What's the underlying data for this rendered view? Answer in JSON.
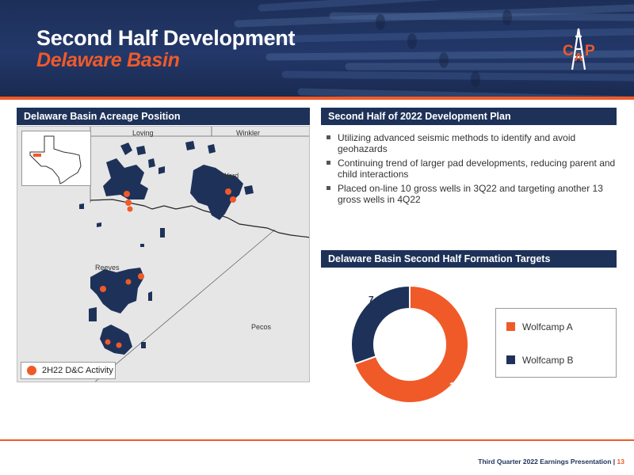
{
  "header": {
    "title": "Second Half Development",
    "subtitle": "Delaware Basin",
    "logo_letters": [
      "C",
      "A",
      "P"
    ]
  },
  "map_panel": {
    "heading": "Delaware Basin Acreage Position",
    "counties": [
      "Loving",
      "Winkler",
      "Ward",
      "Reeves",
      "Pecos"
    ],
    "legend_label": "2H22 D&C Activity"
  },
  "plan_panel": {
    "heading": "Second Half of 2022 Development Plan",
    "bullets": [
      "Utilizing advanced seismic methods to identify and avoid geohazards",
      "Continuing trend of larger pad developments, reducing parent and child interactions",
      "Placed on-line 10 gross wells in 3Q22 and targeting another 13 gross wells in 4Q22"
    ]
  },
  "targets_panel": {
    "heading": "Delaware Basin Second Half Formation Targets"
  },
  "chart_data": {
    "type": "pie",
    "donut": true,
    "categories": [
      "Wolfcamp A",
      "Wolfcamp B"
    ],
    "values": [
      16,
      7
    ],
    "colors": [
      "#f05a28",
      "#1e3259"
    ],
    "data_labels": [
      "16",
      "7"
    ],
    "legend_position": "right"
  },
  "footer": {
    "text": "Third Quarter 2022 Earnings Presentation |",
    "page": "13"
  },
  "colors": {
    "navy": "#1e3259",
    "orange": "#f05a28"
  }
}
